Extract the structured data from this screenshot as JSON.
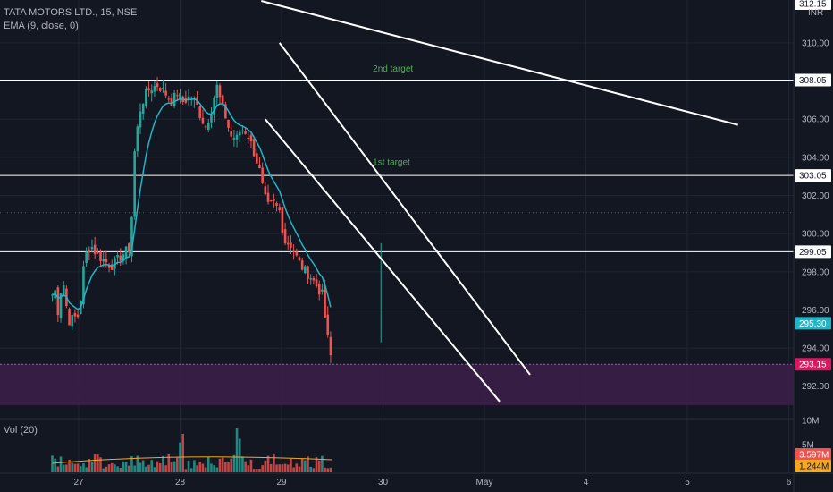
{
  "header": {
    "symbol_line": "TATA MOTORS LTD., 15, NSE",
    "ema_line": "EMA (9, close, 0)",
    "vol_line": "Vol (20)"
  },
  "currency": "INR",
  "colors": {
    "background": "#131722",
    "up": "#26a69a",
    "down": "#ef5350",
    "ema": "#22b5c8",
    "zone": "#3d1f4a",
    "annotation": "#4caf50",
    "lines": "#ffffff"
  },
  "chart_data": {
    "type": "candlestick",
    "x_labels": [
      "27",
      "28",
      "29",
      "30",
      "May",
      "4",
      "5",
      "6"
    ],
    "y_ticks": [
      "292.00",
      "294.00",
      "296.00",
      "298.00",
      "300.00",
      "302.00",
      "304.00",
      "306.00",
      "308.00",
      "310.00"
    ],
    "ylim": [
      290.3,
      312.2
    ],
    "horizontal_levels": [
      {
        "value": 308.05,
        "label": "308.05"
      },
      {
        "value": 303.05,
        "label": "303.05"
      },
      {
        "value": 299.05,
        "label": "299.05"
      }
    ],
    "price_tags": [
      {
        "value": 295.3,
        "label": "295.30"
      },
      {
        "value": 293.15,
        "label": "293.15"
      }
    ],
    "top_tag": "312.15",
    "zone": [
      291.0,
      293.15
    ],
    "annotations": [
      {
        "text": "2nd target",
        "price": 308.5,
        "day": 29.9
      },
      {
        "text": "1st target",
        "price": 303.6,
        "day": 29.9
      }
    ],
    "trendlines": [
      {
        "from": {
          "day": 28.8,
          "price": 312.2
        },
        "to": {
          "day": 33.5,
          "price": 305.7
        }
      },
      {
        "from": {
          "day": 28.98,
          "price": 310.0
        },
        "to": {
          "day": 31.45,
          "price": 292.6
        }
      },
      {
        "from": {
          "day": 28.84,
          "price": 306.0
        },
        "to": {
          "day": 31.15,
          "price": 291.2
        }
      }
    ],
    "volume": {
      "labels": [
        "10M",
        "5M"
      ],
      "max": 10.0,
      "tags": [
        {
          "value": 3.597,
          "label": "3.597M"
        },
        {
          "value": 1.244,
          "label": "1.244M"
        }
      ]
    },
    "ohlc_anchors": [
      [
        26.74,
        296.8
      ],
      [
        26.76,
        297.3
      ],
      [
        26.8,
        295.8
      ],
      [
        26.84,
        297.8
      ],
      [
        26.88,
        296.2
      ],
      [
        26.92,
        295.1
      ],
      [
        26.95,
        295.9
      ],
      [
        26.98,
        295.3
      ],
      [
        27.02,
        296.6
      ],
      [
        27.06,
        298.8
      ],
      [
        27.12,
        299.4
      ],
      [
        27.18,
        298.9
      ],
      [
        27.25,
        298.6
      ],
      [
        27.32,
        298.3
      ],
      [
        27.38,
        298.6
      ],
      [
        27.45,
        299.0
      ],
      [
        27.5,
        299.2
      ],
      [
        27.52,
        300.4
      ],
      [
        27.55,
        304.2
      ],
      [
        27.6,
        306.4
      ],
      [
        27.65,
        307.2
      ],
      [
        27.7,
        307.6
      ],
      [
        27.78,
        307.8
      ],
      [
        27.85,
        307.4
      ],
      [
        27.92,
        306.9
      ],
      [
        27.97,
        307.4
      ],
      [
        28.03,
        306.9
      ],
      [
        28.1,
        307.2
      ],
      [
        28.16,
        306.8
      ],
      [
        28.2,
        306.2
      ],
      [
        28.25,
        305.6
      ],
      [
        28.31,
        306.5
      ],
      [
        28.36,
        307.8
      ],
      [
        28.4,
        306.9
      ],
      [
        28.45,
        306.1
      ],
      [
        28.5,
        305.1
      ],
      [
        28.56,
        305.0
      ],
      [
        28.6,
        305.5
      ],
      [
        28.66,
        305.3
      ],
      [
        28.72,
        304.4
      ],
      [
        28.78,
        303.4
      ],
      [
        28.82,
        302.2
      ],
      [
        28.86,
        301.4
      ],
      [
        28.92,
        301.6
      ],
      [
        28.98,
        301.2
      ],
      [
        29.03,
        299.6
      ],
      [
        29.1,
        299.4
      ],
      [
        29.16,
        298.6
      ],
      [
        29.22,
        298.1
      ],
      [
        29.28,
        297.8
      ],
      [
        29.34,
        297.3
      ],
      [
        29.4,
        296.8
      ],
      [
        29.43,
        295.5
      ],
      [
        29.46,
        294.3
      ],
      [
        29.5,
        293.1
      ]
    ]
  }
}
